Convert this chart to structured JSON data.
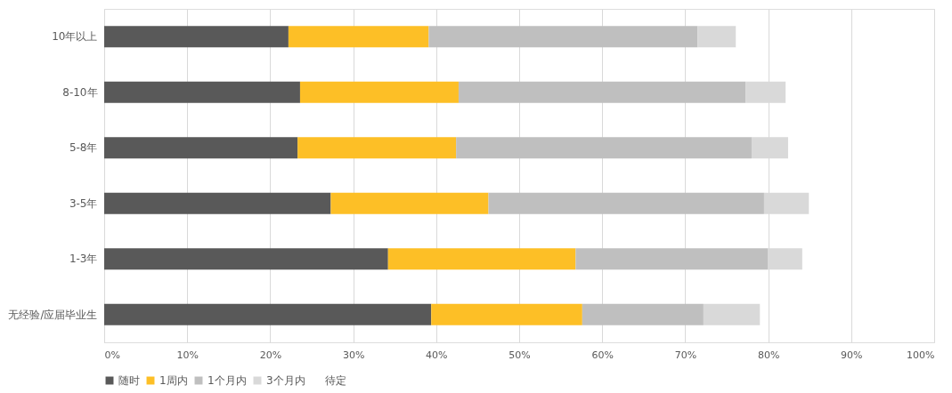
{
  "chart_data": {
    "type": "bar",
    "orientation": "horizontal",
    "stacked": true,
    "categories": [
      "10年以上",
      "8-10年",
      "5-8年",
      "3-5年",
      "1-3年",
      "无经验/应届毕业生"
    ],
    "series": [
      {
        "name": "随时",
        "color": "#595959",
        "values": [
          22.2,
          23.6,
          23.3,
          27.3,
          34.2,
          39.4
        ]
      },
      {
        "name": "1周内",
        "color": "#fdbf26",
        "values": [
          16.9,
          19.1,
          19.1,
          19.0,
          22.6,
          18.2
        ]
      },
      {
        "name": "1个月内",
        "color": "#bfbfbf",
        "values": [
          32.4,
          34.6,
          35.6,
          33.2,
          23.2,
          14.6
        ]
      },
      {
        "name": "3个月内",
        "color": "#d9d9d9",
        "values": [
          4.6,
          4.8,
          4.4,
          5.4,
          4.1,
          6.8
        ]
      },
      {
        "name": "待定",
        "values": [
          null,
          null,
          null,
          null,
          null,
          null
        ]
      }
    ],
    "xlim": [
      0,
      100
    ],
    "xticks": [
      {
        "value": 0,
        "label": "0%"
      },
      {
        "value": 10,
        "label": "10%"
      },
      {
        "value": 20,
        "label": "20%"
      },
      {
        "value": 30,
        "label": "30%"
      },
      {
        "value": 40,
        "label": "40%"
      },
      {
        "value": 50,
        "label": "50%"
      },
      {
        "value": 60,
        "label": "60%"
      },
      {
        "value": 70,
        "label": "70%"
      },
      {
        "value": 80,
        "label": "80%"
      },
      {
        "value": 90,
        "label": "90%"
      },
      {
        "value": 100,
        "label": "100%"
      }
    ],
    "grid": "x",
    "legend": "bottom"
  }
}
